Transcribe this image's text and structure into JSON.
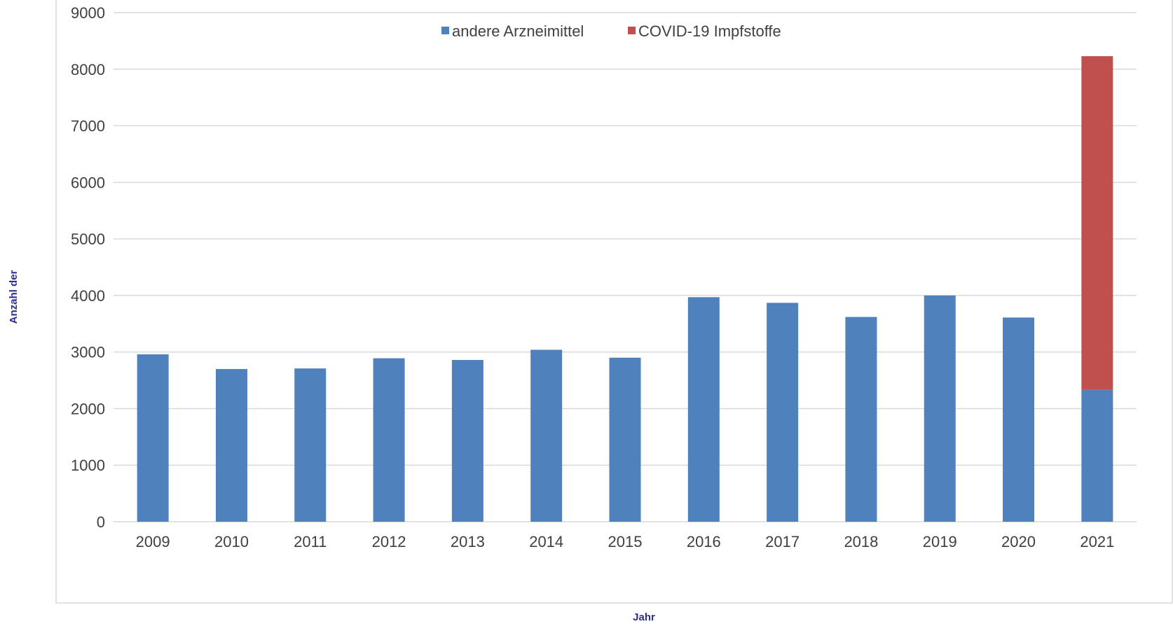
{
  "chart_data": {
    "type": "bar",
    "stacked": true,
    "categories": [
      "2009",
      "2010",
      "2011",
      "2012",
      "2013",
      "2014",
      "2015",
      "2016",
      "2017",
      "2018",
      "2019",
      "2020",
      "2021"
    ],
    "series": [
      {
        "name": "andere Arzneimittel",
        "color": "#4f81bd",
        "values": [
          2960,
          2700,
          2710,
          2890,
          2860,
          3040,
          2900,
          3970,
          3870,
          3620,
          4000,
          3610,
          2330
        ]
      },
      {
        "name": "COVID-19 Impfstoffe",
        "color": "#c0504d",
        "values": [
          0,
          0,
          0,
          0,
          0,
          0,
          0,
          0,
          0,
          0,
          0,
          0,
          5900
        ]
      }
    ],
    "ylim": [
      0,
      9000
    ],
    "yticks": [
      "0",
      "1000",
      "2000",
      "3000",
      "4000",
      "5000",
      "6000",
      "7000",
      "8000",
      "9000"
    ],
    "xlabel": "Jahr",
    "ylabel": "Anzahl der",
    "grid": true,
    "legend": "top-center"
  }
}
